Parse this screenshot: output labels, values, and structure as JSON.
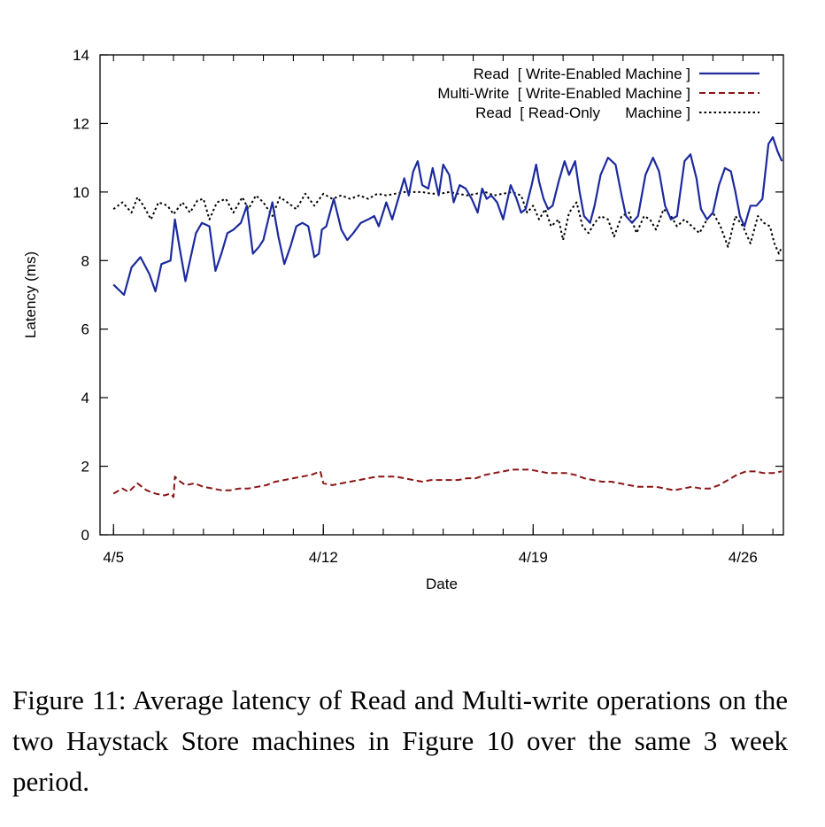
{
  "chart_data": {
    "type": "line",
    "title": "",
    "xlabel": "Date",
    "ylabel": "Latency (ms)",
    "x_ticks": [
      "4/5",
      "4/12",
      "4/19",
      "4/26"
    ],
    "y_ticks": [
      "0",
      "2",
      "4",
      "6",
      "8",
      "10",
      "12",
      "14"
    ],
    "ylim": [
      0,
      14
    ],
    "grid": false,
    "legend_position": "top-right",
    "series": [
      {
        "name": "Read  [ Write-Enabled Machine ]",
        "color": "#1c2a9e",
        "style": "solid",
        "points": [
          [
            0.0,
            7.3
          ],
          [
            0.35,
            7.0
          ],
          [
            0.6,
            7.8
          ],
          [
            0.9,
            8.1
          ],
          [
            1.2,
            7.6
          ],
          [
            1.4,
            7.1
          ],
          [
            1.6,
            7.9
          ],
          [
            1.9,
            8.0
          ],
          [
            2.05,
            9.2
          ],
          [
            2.2,
            8.4
          ],
          [
            2.4,
            7.4
          ],
          [
            2.55,
            8.0
          ],
          [
            2.75,
            8.8
          ],
          [
            2.95,
            9.1
          ],
          [
            3.2,
            9.0
          ],
          [
            3.4,
            7.7
          ],
          [
            3.6,
            8.2
          ],
          [
            3.8,
            8.8
          ],
          [
            4.0,
            8.9
          ],
          [
            4.25,
            9.1
          ],
          [
            4.45,
            9.6
          ],
          [
            4.65,
            8.2
          ],
          [
            4.85,
            8.4
          ],
          [
            5.0,
            8.6
          ],
          [
            5.3,
            9.7
          ],
          [
            5.5,
            8.7
          ],
          [
            5.7,
            7.9
          ],
          [
            5.9,
            8.4
          ],
          [
            6.1,
            9.0
          ],
          [
            6.3,
            9.1
          ],
          [
            6.5,
            9.0
          ],
          [
            6.7,
            8.1
          ],
          [
            6.85,
            8.2
          ],
          [
            6.95,
            8.9
          ],
          [
            7.1,
            9.0
          ],
          [
            7.35,
            9.8
          ],
          [
            7.6,
            8.9
          ],
          [
            7.8,
            8.6
          ],
          [
            8.0,
            8.8
          ],
          [
            8.25,
            9.1
          ],
          [
            8.5,
            9.2
          ],
          [
            8.7,
            9.3
          ],
          [
            8.85,
            9.0
          ],
          [
            9.1,
            9.7
          ],
          [
            9.3,
            9.2
          ],
          [
            9.5,
            9.8
          ],
          [
            9.7,
            10.4
          ],
          [
            9.85,
            9.9
          ],
          [
            10.0,
            10.6
          ],
          [
            10.15,
            10.9
          ],
          [
            10.3,
            10.2
          ],
          [
            10.5,
            10.1
          ],
          [
            10.65,
            10.7
          ],
          [
            10.85,
            9.9
          ],
          [
            11.0,
            10.8
          ],
          [
            11.2,
            10.5
          ],
          [
            11.35,
            9.7
          ],
          [
            11.55,
            10.2
          ],
          [
            11.75,
            10.1
          ],
          [
            11.95,
            9.8
          ],
          [
            12.15,
            9.4
          ],
          [
            12.3,
            10.1
          ],
          [
            12.45,
            9.8
          ],
          [
            12.6,
            9.9
          ],
          [
            12.8,
            9.7
          ],
          [
            13.0,
            9.2
          ],
          [
            13.25,
            10.2
          ],
          [
            13.45,
            9.8
          ],
          [
            13.6,
            9.4
          ],
          [
            13.75,
            9.5
          ],
          [
            13.95,
            10.2
          ],
          [
            14.1,
            10.8
          ],
          [
            14.2,
            10.3
          ],
          [
            14.35,
            9.8
          ],
          [
            14.5,
            9.5
          ],
          [
            14.65,
            9.6
          ],
          [
            14.85,
            10.3
          ],
          [
            15.05,
            10.9
          ],
          [
            15.2,
            10.5
          ],
          [
            15.4,
            10.9
          ],
          [
            15.55,
            10.0
          ],
          [
            15.7,
            9.3
          ],
          [
            15.9,
            9.1
          ],
          [
            16.05,
            9.6
          ],
          [
            16.25,
            10.5
          ],
          [
            16.5,
            11.0
          ],
          [
            16.75,
            10.8
          ],
          [
            16.95,
            9.9
          ],
          [
            17.1,
            9.3
          ],
          [
            17.3,
            9.1
          ],
          [
            17.5,
            9.3
          ],
          [
            17.75,
            10.5
          ],
          [
            18.0,
            11.0
          ],
          [
            18.2,
            10.6
          ],
          [
            18.4,
            9.6
          ],
          [
            18.6,
            9.2
          ],
          [
            18.8,
            9.3
          ],
          [
            19.05,
            10.9
          ],
          [
            19.25,
            11.1
          ],
          [
            19.45,
            10.4
          ],
          [
            19.6,
            9.5
          ],
          [
            19.8,
            9.2
          ],
          [
            20.0,
            9.4
          ],
          [
            20.2,
            10.2
          ],
          [
            20.4,
            10.7
          ],
          [
            20.6,
            10.6
          ],
          [
            20.75,
            10.0
          ],
          [
            20.9,
            9.3
          ],
          [
            21.05,
            9.0
          ],
          [
            21.25,
            9.6
          ],
          [
            21.45,
            9.6
          ],
          [
            21.65,
            9.8
          ],
          [
            21.85,
            11.4
          ],
          [
            22.0,
            11.6
          ],
          [
            22.15,
            11.2
          ],
          [
            22.3,
            10.9
          ]
        ]
      },
      {
        "name": "Multi-Write  [ Write-Enabled Machine ]",
        "color": "#8b1414",
        "style": "dashed",
        "points": [
          [
            0.0,
            1.2
          ],
          [
            0.3,
            1.35
          ],
          [
            0.5,
            1.25
          ],
          [
            0.8,
            1.5
          ],
          [
            1.1,
            1.3
          ],
          [
            1.4,
            1.2
          ],
          [
            1.7,
            1.15
          ],
          [
            1.9,
            1.2
          ],
          [
            2.0,
            1.1
          ],
          [
            2.05,
            1.7
          ],
          [
            2.15,
            1.6
          ],
          [
            2.4,
            1.45
          ],
          [
            2.7,
            1.5
          ],
          [
            3.0,
            1.4
          ],
          [
            3.3,
            1.35
          ],
          [
            3.6,
            1.3
          ],
          [
            3.9,
            1.3
          ],
          [
            4.2,
            1.35
          ],
          [
            4.5,
            1.35
          ],
          [
            4.8,
            1.4
          ],
          [
            5.1,
            1.45
          ],
          [
            5.4,
            1.55
          ],
          [
            5.7,
            1.6
          ],
          [
            6.0,
            1.65
          ],
          [
            6.3,
            1.7
          ],
          [
            6.6,
            1.75
          ],
          [
            6.9,
            1.85
          ],
          [
            7.0,
            1.5
          ],
          [
            7.3,
            1.45
          ],
          [
            7.6,
            1.5
          ],
          [
            7.9,
            1.55
          ],
          [
            8.2,
            1.6
          ],
          [
            8.5,
            1.65
          ],
          [
            8.8,
            1.7
          ],
          [
            9.1,
            1.7
          ],
          [
            9.4,
            1.7
          ],
          [
            9.7,
            1.65
          ],
          [
            10.0,
            1.6
          ],
          [
            10.3,
            1.55
          ],
          [
            10.6,
            1.6
          ],
          [
            10.9,
            1.6
          ],
          [
            11.2,
            1.6
          ],
          [
            11.5,
            1.6
          ],
          [
            11.8,
            1.65
          ],
          [
            12.1,
            1.65
          ],
          [
            12.4,
            1.75
          ],
          [
            12.7,
            1.8
          ],
          [
            13.0,
            1.85
          ],
          [
            13.3,
            1.9
          ],
          [
            13.6,
            1.9
          ],
          [
            13.9,
            1.9
          ],
          [
            14.2,
            1.85
          ],
          [
            14.5,
            1.8
          ],
          [
            14.8,
            1.8
          ],
          [
            15.1,
            1.8
          ],
          [
            15.4,
            1.75
          ],
          [
            15.7,
            1.65
          ],
          [
            16.0,
            1.6
          ],
          [
            16.3,
            1.55
          ],
          [
            16.6,
            1.55
          ],
          [
            16.9,
            1.5
          ],
          [
            17.2,
            1.45
          ],
          [
            17.5,
            1.4
          ],
          [
            17.8,
            1.4
          ],
          [
            18.1,
            1.4
          ],
          [
            18.4,
            1.35
          ],
          [
            18.7,
            1.3
          ],
          [
            19.0,
            1.35
          ],
          [
            19.3,
            1.4
          ],
          [
            19.6,
            1.35
          ],
          [
            19.9,
            1.35
          ],
          [
            20.2,
            1.45
          ],
          [
            20.5,
            1.6
          ],
          [
            20.8,
            1.75
          ],
          [
            21.1,
            1.85
          ],
          [
            21.4,
            1.85
          ],
          [
            21.7,
            1.8
          ],
          [
            22.0,
            1.8
          ],
          [
            22.3,
            1.85
          ]
        ]
      },
      {
        "name": "Read  [ Read-Only      Machine ]",
        "color": "#000000",
        "style": "dotted",
        "points": [
          [
            0.0,
            9.5
          ],
          [
            0.3,
            9.7
          ],
          [
            0.6,
            9.4
          ],
          [
            0.8,
            9.85
          ],
          [
            1.0,
            9.6
          ],
          [
            1.25,
            9.2
          ],
          [
            1.5,
            9.7
          ],
          [
            1.8,
            9.6
          ],
          [
            2.0,
            9.35
          ],
          [
            2.3,
            9.7
          ],
          [
            2.55,
            9.4
          ],
          [
            2.8,
            9.75
          ],
          [
            3.0,
            9.8
          ],
          [
            3.2,
            9.2
          ],
          [
            3.45,
            9.7
          ],
          [
            3.75,
            9.8
          ],
          [
            4.0,
            9.4
          ],
          [
            4.3,
            9.85
          ],
          [
            4.5,
            9.5
          ],
          [
            4.75,
            9.9
          ],
          [
            5.0,
            9.7
          ],
          [
            5.3,
            9.3
          ],
          [
            5.55,
            9.85
          ],
          [
            5.8,
            9.7
          ],
          [
            6.1,
            9.5
          ],
          [
            6.4,
            9.95
          ],
          [
            6.7,
            9.6
          ],
          [
            7.0,
            9.95
          ],
          [
            7.3,
            9.8
          ],
          [
            7.6,
            9.9
          ],
          [
            7.9,
            9.8
          ],
          [
            8.2,
            9.9
          ],
          [
            8.5,
            9.8
          ],
          [
            8.8,
            9.95
          ],
          [
            9.1,
            9.9
          ],
          [
            9.4,
            9.95
          ],
          [
            9.7,
            10.0
          ],
          [
            10.0,
            10.0
          ],
          [
            10.3,
            10.0
          ],
          [
            10.6,
            9.95
          ],
          [
            10.9,
            9.95
          ],
          [
            11.2,
            10.0
          ],
          [
            11.5,
            9.95
          ],
          [
            11.8,
            9.9
          ],
          [
            12.1,
            9.95
          ],
          [
            12.4,
            10.0
          ],
          [
            12.7,
            9.9
          ],
          [
            13.0,
            9.95
          ],
          [
            13.3,
            10.0
          ],
          [
            13.6,
            9.9
          ],
          [
            13.8,
            9.4
          ],
          [
            14.0,
            9.6
          ],
          [
            14.2,
            9.2
          ],
          [
            14.4,
            9.5
          ],
          [
            14.6,
            9.0
          ],
          [
            14.85,
            9.2
          ],
          [
            15.0,
            8.6
          ],
          [
            15.2,
            9.4
          ],
          [
            15.45,
            9.7
          ],
          [
            15.65,
            9.0
          ],
          [
            15.85,
            8.8
          ],
          [
            16.05,
            9.1
          ],
          [
            16.25,
            9.3
          ],
          [
            16.5,
            9.2
          ],
          [
            16.7,
            8.7
          ],
          [
            16.95,
            9.3
          ],
          [
            17.2,
            9.4
          ],
          [
            17.45,
            8.8
          ],
          [
            17.7,
            9.3
          ],
          [
            17.9,
            9.2
          ],
          [
            18.1,
            8.9
          ],
          [
            18.35,
            9.5
          ],
          [
            18.6,
            9.3
          ],
          [
            18.8,
            9.0
          ],
          [
            19.05,
            9.2
          ],
          [
            19.3,
            9.0
          ],
          [
            19.55,
            8.8
          ],
          [
            19.8,
            9.2
          ],
          [
            20.0,
            9.4
          ],
          [
            20.25,
            9.0
          ],
          [
            20.5,
            8.4
          ],
          [
            20.75,
            9.3
          ],
          [
            21.0,
            9.0
          ],
          [
            21.25,
            8.5
          ],
          [
            21.5,
            9.3
          ],
          [
            21.7,
            9.1
          ],
          [
            21.9,
            9.0
          ],
          [
            22.05,
            8.5
          ],
          [
            22.2,
            8.2
          ],
          [
            22.3,
            8.4
          ]
        ]
      }
    ]
  },
  "caption": {
    "text": "Figure 11: Average latency of Read and Multi-write operations on the two Haystack Store machines in Figure 10 over the same 3 week period."
  }
}
